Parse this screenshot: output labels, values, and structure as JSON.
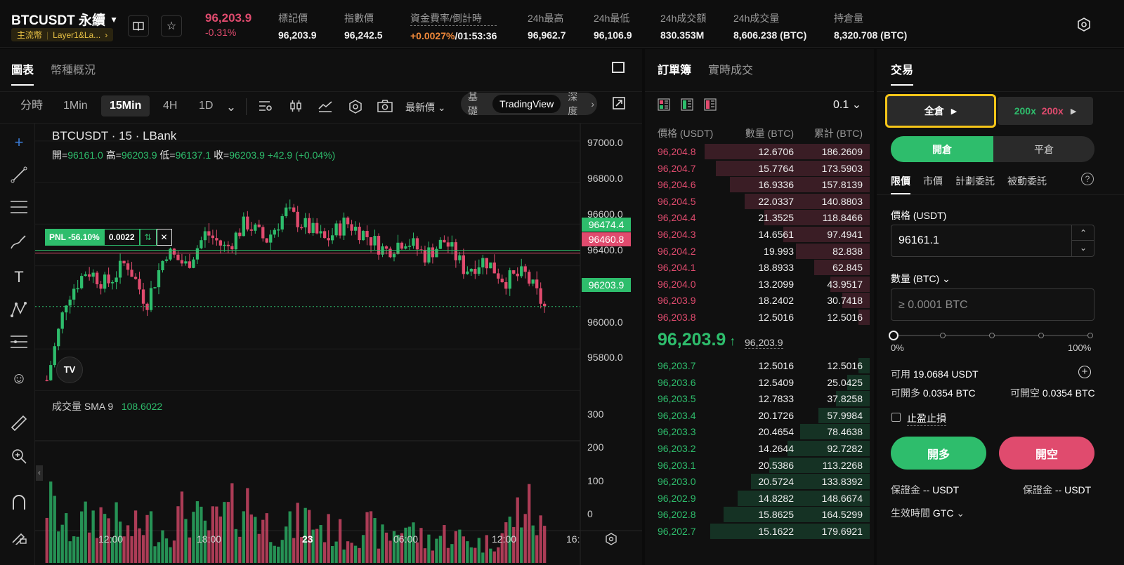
{
  "header": {
    "symbol": "BTCUSDT 永續",
    "tag1": "主流幣",
    "tag2": "Layer1&La...",
    "last_price": "96,203.9",
    "change_pct": "-0.31%",
    "stats": [
      {
        "label": "標記價",
        "value": "96,203.9"
      },
      {
        "label": "指數價",
        "value": "96,242.5"
      },
      {
        "label": "資金費率/倒計時",
        "value_a": "+0.0027%",
        "value_b": "/01:53:36"
      },
      {
        "label": "24h最高",
        "value": "96,962.7"
      },
      {
        "label": "24h最低",
        "value": "96,106.9"
      },
      {
        "label": "24h成交額",
        "value": "830.353M"
      },
      {
        "label": "24h成交量",
        "value": "8,606.238 (BTC)"
      },
      {
        "label": "持倉量",
        "value": "8,320.708 (BTC)"
      }
    ]
  },
  "chart_panel": {
    "tabs": [
      "圖表",
      "幣種概況"
    ],
    "timeframes": [
      "分時",
      "1Min",
      "15Min",
      "4H",
      "1D"
    ],
    "price_type": "最新價",
    "view_modes": [
      "基礎",
      "TradingView",
      "深度"
    ],
    "title": "BTCUSDT · 15 · LBank",
    "ohlc": {
      "open_label": "開=",
      "open": "96161.0",
      "high_label": "高=",
      "high": "96203.9",
      "low_label": "低=",
      "low": "96137.1",
      "close_label": "收=",
      "close": "96203.9",
      "change": "+42.9 (+0.04%)"
    },
    "pnl_label": "PNL -56.10%",
    "position_qty": "0.0022",
    "volume_title": "成交量 SMA 9",
    "volume_value": "108.6022",
    "price_axis": [
      "97000.0",
      "96800.0",
      "96600.0",
      "96400.0",
      "96000.0",
      "95800.0"
    ],
    "price_tags": {
      "green": "96474.4",
      "red": "96460.8",
      "last": "96203.9"
    },
    "volume_axis": [
      "300",
      "200",
      "100",
      "0"
    ],
    "time_axis": [
      "12:00",
      "18:00",
      "23",
      "06:00",
      "12:00",
      "16:"
    ],
    "colors": {
      "up": "#2ebd6c",
      "down": "#e04b6e"
    }
  },
  "chart_data": {
    "type": "candlestick",
    "title": "BTCUSDT · 15 · LBank",
    "xlabel": "",
    "ylabel": "",
    "ylim": [
      95700,
      97050
    ],
    "series": [
      {
        "name": "價格",
        "values": [
          95850,
          96250,
          96380,
          96310,
          96420,
          96220,
          96470,
          96400,
          96560,
          96480,
          96610,
          96520,
          96660,
          96590,
          96520,
          96610,
          96550,
          96470,
          96530,
          96450,
          96520,
          96380,
          96430,
          96330,
          96360,
          96200
        ]
      },
      {
        "name": "成交量 SMA 9",
        "values": [
          240,
          120,
          160,
          190,
          110,
          150,
          120,
          200,
          130,
          180,
          230,
          150,
          120,
          170,
          130,
          100,
          140,
          90,
          150,
          80,
          110,
          90,
          70,
          120,
          230,
          110
        ]
      }
    ]
  },
  "order_book": {
    "tabs": [
      "訂單簿",
      "實時成交"
    ],
    "precision": "0.1",
    "headers": [
      "價格 (USDT)",
      "數量 (BTC)",
      "累計 (BTC)"
    ],
    "asks": [
      {
        "p": "96,204.8",
        "q": "12.6706",
        "c": "186.2609"
      },
      {
        "p": "96,204.7",
        "q": "15.7764",
        "c": "173.5903"
      },
      {
        "p": "96,204.6",
        "q": "16.9336",
        "c": "157.8139"
      },
      {
        "p": "96,204.5",
        "q": "22.0337",
        "c": "140.8803"
      },
      {
        "p": "96,204.4",
        "q": "21.3525",
        "c": "118.8466"
      },
      {
        "p": "96,204.3",
        "q": "14.6561",
        "c": "97.4941"
      },
      {
        "p": "96,204.2",
        "q": "19.993",
        "c": "82.838"
      },
      {
        "p": "96,204.1",
        "q": "18.8933",
        "c": "62.845"
      },
      {
        "p": "96,204.0",
        "q": "13.2099",
        "c": "43.9517"
      },
      {
        "p": "96,203.9",
        "q": "18.2402",
        "c": "30.7418"
      },
      {
        "p": "96,203.8",
        "q": "12.5016",
        "c": "12.5016"
      }
    ],
    "mid_price": "96,203.9",
    "mid_mark": "96,203.9",
    "bids": [
      {
        "p": "96,203.7",
        "q": "12.5016",
        "c": "12.5016"
      },
      {
        "p": "96,203.6",
        "q": "12.5409",
        "c": "25.0425"
      },
      {
        "p": "96,203.5",
        "q": "12.7833",
        "c": "37.8258"
      },
      {
        "p": "96,203.4",
        "q": "20.1726",
        "c": "57.9984"
      },
      {
        "p": "96,203.3",
        "q": "20.4654",
        "c": "78.4638"
      },
      {
        "p": "96,203.2",
        "q": "14.2644",
        "c": "92.7282"
      },
      {
        "p": "96,203.1",
        "q": "20.5386",
        "c": "113.2268"
      },
      {
        "p": "96,203.0",
        "q": "20.5724",
        "c": "133.8392"
      },
      {
        "p": "96,202.9",
        "q": "14.8282",
        "c": "148.6674"
      },
      {
        "p": "96,202.8",
        "q": "15.8625",
        "c": "164.5299"
      },
      {
        "p": "96,202.7",
        "q": "15.1622",
        "c": "179.6921"
      }
    ]
  },
  "trade": {
    "title": "交易",
    "margin_mode": "全倉",
    "leverage_long": "200x",
    "leverage_short": "200x",
    "open_tab": "開倉",
    "close_tab": "平倉",
    "order_types": [
      "限價",
      "市價",
      "計劃委託",
      "被動委託"
    ],
    "price_label": "價格 (USDT)",
    "price_value": "96161.1",
    "qty_label": "數量 (BTC)",
    "qty_placeholder": "≥ 0.0001 BTC",
    "slider_min": "0%",
    "slider_max": "100%",
    "slider_fraction": 0,
    "available_label": "可用",
    "available_value": "19.0684 USDT",
    "can_long_label": "可開多",
    "can_long_value": "0.0354 BTC",
    "can_short_label": "可開空",
    "can_short_value": "0.0354 BTC",
    "tpsl_label": "止盈止損",
    "buy_label": "開多",
    "sell_label": "開空",
    "margin_long_label": "保證金",
    "margin_long_value": "-- USDT",
    "margin_short_label": "保證金",
    "margin_short_value": "-- USDT",
    "tif_label": "生效時間",
    "tif_value": "GTC"
  }
}
